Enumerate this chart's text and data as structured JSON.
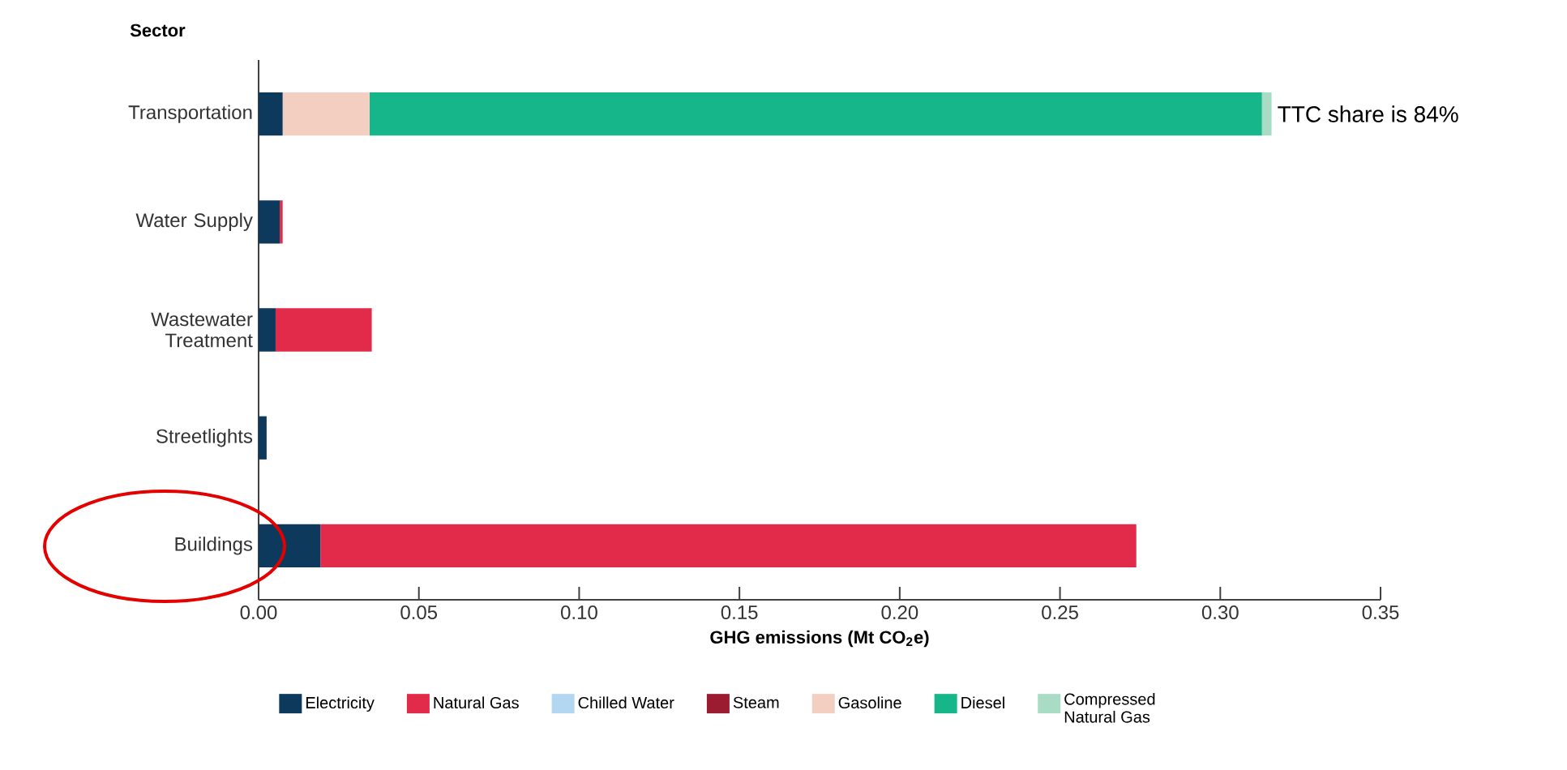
{
  "chart_data": {
    "type": "bar",
    "orientation": "horizontal",
    "stacked": true,
    "ylabel": "Sector",
    "xlabel": "GHG emissions (Mt CO$_{2}$e)",
    "categories": [
      "Transportation",
      "Water Supply",
      "Wastewater Treatment",
      "Streetlights",
      "Buildings"
    ],
    "series": [
      {
        "name": "Electricity",
        "color": "#0d3a5c",
        "values": [
          0.0075,
          0.0066,
          0.0053,
          0.0025,
          0.0193
        ]
      },
      {
        "name": "Natural Gas",
        "color": "#e22b4a",
        "values": [
          null,
          0.0009,
          0.03,
          null,
          0.2545
        ]
      },
      {
        "name": "Chilled Water",
        "color": "#b3d7f0",
        "values": [
          null,
          null,
          null,
          null,
          null
        ]
      },
      {
        "name": "Steam",
        "color": "#9b1b30",
        "values": [
          null,
          null,
          null,
          null,
          null
        ]
      },
      {
        "name": "Gasoline",
        "color": "#f2cfc0",
        "values": [
          0.0271,
          null,
          null,
          null,
          null
        ]
      },
      {
        "name": "Diesel",
        "color": "#16b58a",
        "values": [
          0.2784,
          null,
          null,
          null,
          null
        ]
      },
      {
        "name": "Compressed Natural Gas",
        "color": "#a9dcc4",
        "values": [
          0.003,
          null,
          null,
          null,
          null
        ]
      }
    ],
    "xlim": [
      0,
      0.35
    ],
    "xticks": [
      {
        "value": 0,
        "label": "0.00"
      },
      {
        "value": 0.05,
        "label": "0.05"
      },
      {
        "value": 0.1,
        "label": "0.10"
      },
      {
        "value": 0.15,
        "label": "0.15"
      },
      {
        "value": 0.2,
        "label": "0.20"
      },
      {
        "value": 0.25,
        "label": "0.25"
      },
      {
        "value": 0.3,
        "label": "0.30"
      },
      {
        "value": 0.35,
        "label": "0.35"
      }
    ],
    "annotations": [
      {
        "text": "TTC share is 84%",
        "x": 0.316,
        "y": "Transportation"
      }
    ],
    "grid": false,
    "legend": "bottom"
  }
}
